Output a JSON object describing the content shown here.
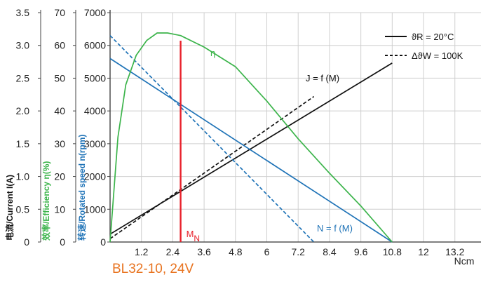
{
  "chart_data": {
    "type": "line",
    "caption": "BL32-10, 24V",
    "x_unit": "Ncm",
    "x_ticks": [
      "1.2",
      "2.4",
      "3.6",
      "4.8",
      "6",
      "7.2",
      "8.4",
      "9.6",
      "10.8",
      "12",
      "13.2"
    ],
    "xlim": [
      0,
      14.2
    ],
    "axes": [
      {
        "label_cn": "电流",
        "label_en": "/Current I(A)",
        "color": "#111111",
        "ticks": [
          "0",
          "0.5",
          "1.0",
          "1.5",
          "2.0",
          "2.5",
          "3.0",
          "3.5"
        ],
        "range": [
          0,
          3.5
        ]
      },
      {
        "label_cn": "效率",
        "label_en": "/Efficiency η(%)",
        "color": "#3cb44b",
        "ticks": [
          "0",
          "10",
          "20",
          "30",
          "40",
          "50",
          "60",
          "70"
        ],
        "range": [
          0,
          70
        ]
      },
      {
        "label_cn": "转速",
        "label_en": "/Rotated speed n(rpm)",
        "color": "#1f73b7",
        "ticks": [
          "0",
          "1000",
          "2000",
          "3000",
          "4000",
          "5000",
          "6000",
          "7000"
        ],
        "range": [
          0,
          7000
        ]
      }
    ],
    "rated_torque": 2.7,
    "rated_label": "M",
    "rated_label_sub": "N",
    "series": [
      {
        "name": "J = f (M)",
        "axis": "current",
        "style": "solid",
        "color": "#111111",
        "x": [
          0,
          10.8
        ],
        "y": [
          0.12,
          2.73
        ]
      },
      {
        "name": "J = f (M)",
        "axis": "current",
        "style": "dashed",
        "color": "#111111",
        "x": [
          0,
          7.8
        ],
        "y": [
          0.05,
          2.22
        ]
      },
      {
        "name": "N = f (M)",
        "axis": "speed",
        "style": "solid",
        "color": "#1f73b7",
        "x": [
          0,
          10.8
        ],
        "y": [
          5600,
          0
        ]
      },
      {
        "name": "N = f (M)",
        "axis": "speed",
        "style": "dashed",
        "color": "#1f73b7",
        "x": [
          0,
          7.8
        ],
        "y": [
          6300,
          0
        ]
      },
      {
        "name": "η",
        "axis": "efficiency",
        "style": "solid",
        "color": "#3cb44b",
        "x": [
          0,
          0.3,
          0.6,
          1.0,
          1.4,
          1.8,
          2.2,
          2.7,
          3.6,
          4.8,
          6.0,
          7.2,
          8.4,
          9.6,
          10.8
        ],
        "y": [
          0,
          32,
          48,
          57,
          61.5,
          63.8,
          63.8,
          63,
          59.5,
          53.5,
          43,
          31.5,
          21,
          11,
          0
        ]
      }
    ],
    "labels": {
      "current": "J = f (M)",
      "speed": "N = f (M)",
      "efficiency": "η"
    },
    "legend": {
      "position": "top-right",
      "items": [
        {
          "style": "solid",
          "text": "ϑR = 20°C"
        },
        {
          "style": "dashed",
          "text": "ΔϑW = 100K"
        }
      ]
    }
  }
}
